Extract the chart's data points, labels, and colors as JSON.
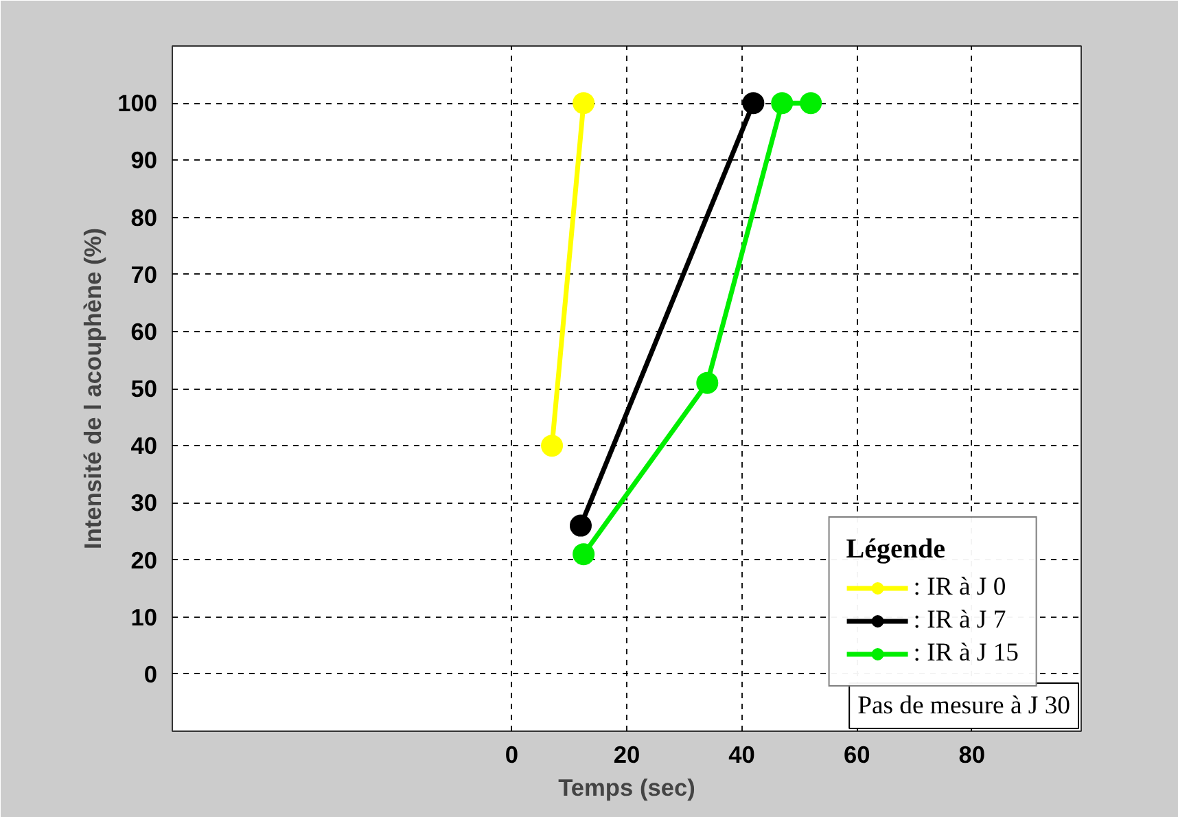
{
  "chart_data": {
    "type": "line",
    "xlabel": "Temps (sec)",
    "ylabel": "Intensité de l acouphène (%)",
    "legend_title": "Légende",
    "annotations": [
      "Pas de mesure à J 30"
    ],
    "xlim": [
      -59,
      99
    ],
    "ylim": [
      -10,
      110
    ],
    "xticks": [
      0,
      20,
      40,
      60,
      80
    ],
    "yticks": [
      0,
      10,
      20,
      30,
      40,
      50,
      60,
      70,
      80,
      90,
      100
    ],
    "grid": true,
    "legend": "bottom right",
    "marker": "circle",
    "line_style": "solid",
    "series": [
      {
        "name": ": IR à J 0",
        "color": "#ffff00",
        "x": [
          7,
          12.5
        ],
        "values": [
          40,
          100
        ]
      },
      {
        "name": ": IR à J 7",
        "color": "#000000",
        "x": [
          12,
          42
        ],
        "values": [
          26,
          100
        ]
      },
      {
        "name": ": IR à J 15",
        "color": "#00ee00",
        "x": [
          12.5,
          34,
          47,
          52
        ],
        "values": [
          21,
          51,
          100,
          100
        ]
      }
    ]
  }
}
